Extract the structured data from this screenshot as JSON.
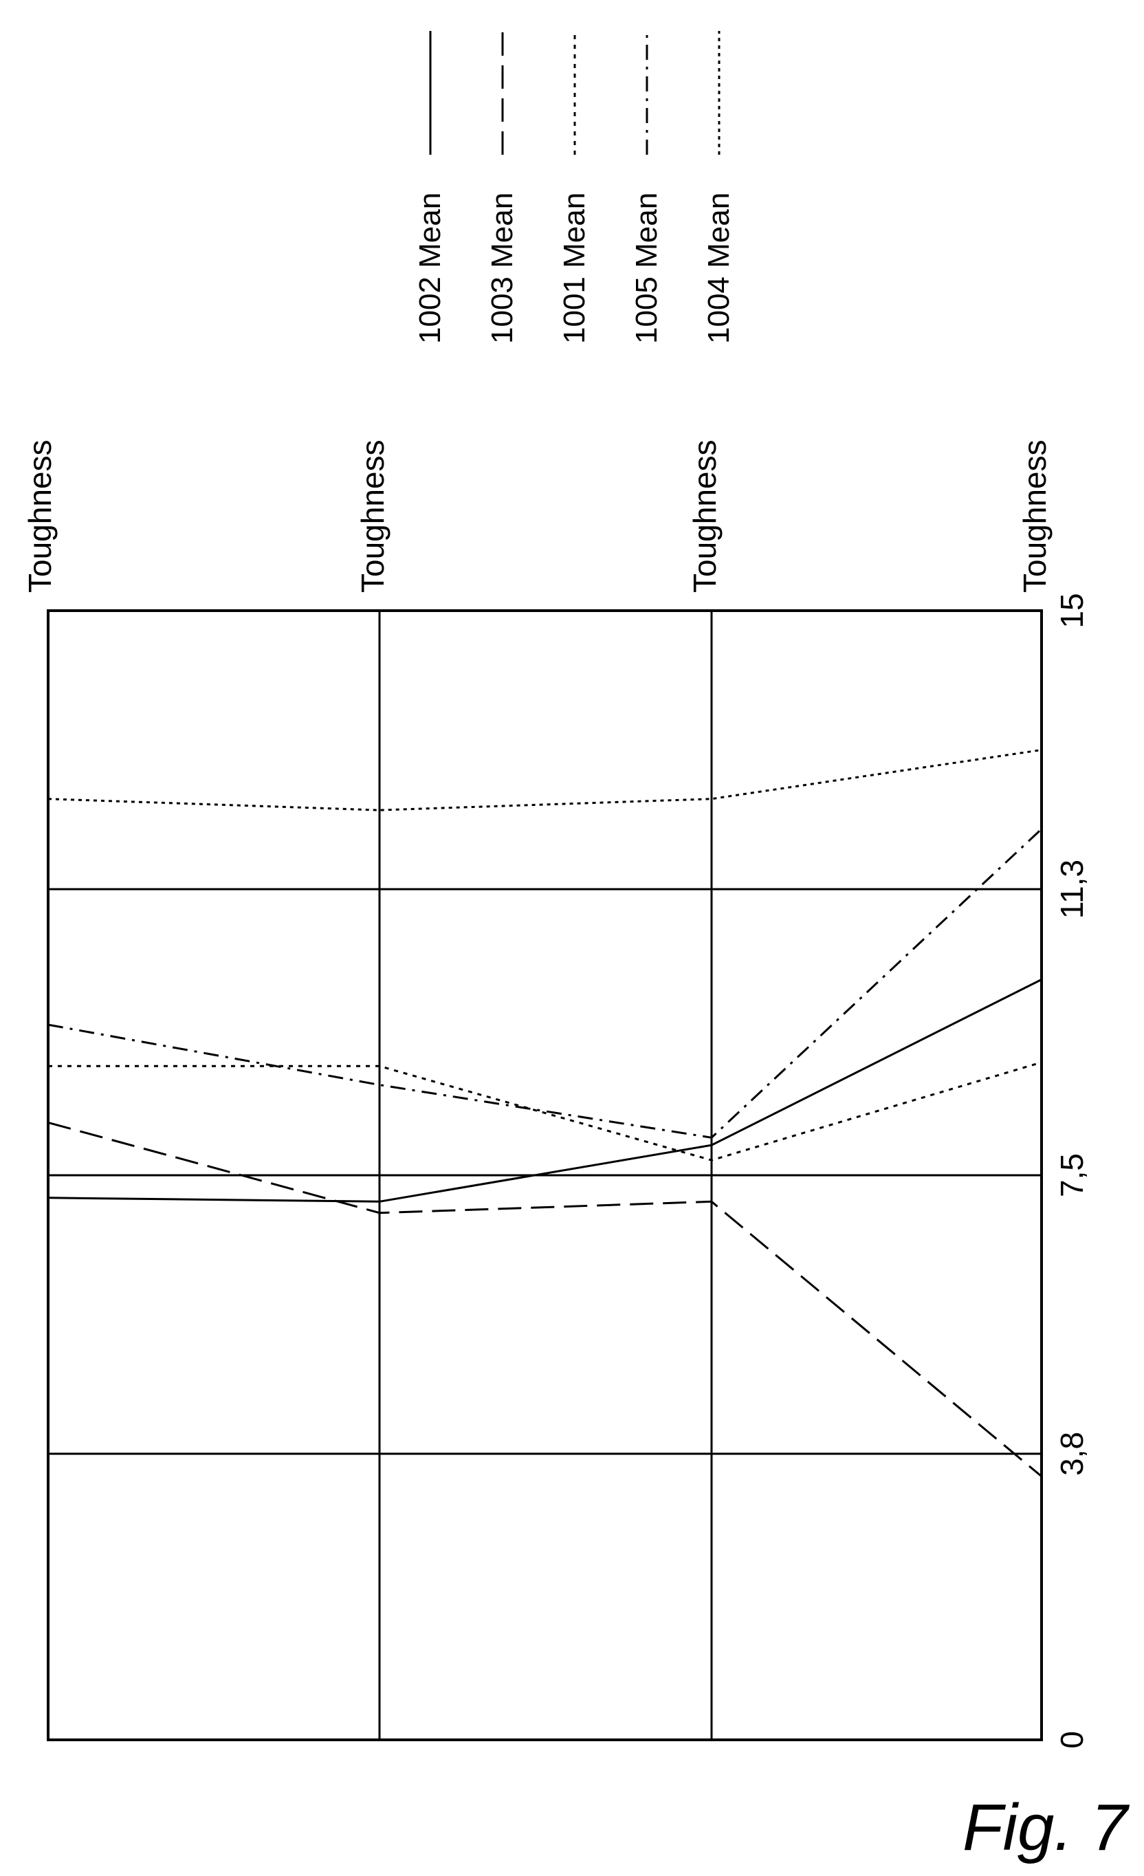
{
  "figure_label": "Fig. 7",
  "chart_data": {
    "type": "line",
    "orientation": "rotated-90",
    "title": "",
    "categories": [
      "Toughness",
      "Toughness",
      "Toughness",
      "Toughness"
    ],
    "value_ticks": [
      "0",
      "3,8",
      "7,5",
      "11,3",
      "15"
    ],
    "value_tick_values": [
      0,
      3.8,
      7.5,
      11.3,
      15
    ],
    "ylim": [
      0,
      15
    ],
    "grid": true,
    "legend_position": "top",
    "series": [
      {
        "name": "1002 Mean",
        "dash": "solid",
        "values": [
          7.2,
          7.15,
          7.9,
          10.1
        ]
      },
      {
        "name": "1003 Mean",
        "dash": "long-dash",
        "values": [
          8.2,
          7.0,
          7.15,
          3.5
        ]
      },
      {
        "name": "1001 Mean",
        "dash": "dot",
        "values": [
          8.95,
          8.95,
          7.7,
          9.0
        ]
      },
      {
        "name": "1005 Mean",
        "dash": "dash-dot",
        "values": [
          9.5,
          8.7,
          8.0,
          12.1
        ]
      },
      {
        "name": "1004 Mean",
        "dash": "fine-dot",
        "values": [
          12.5,
          12.35,
          12.5,
          13.15
        ]
      }
    ]
  }
}
